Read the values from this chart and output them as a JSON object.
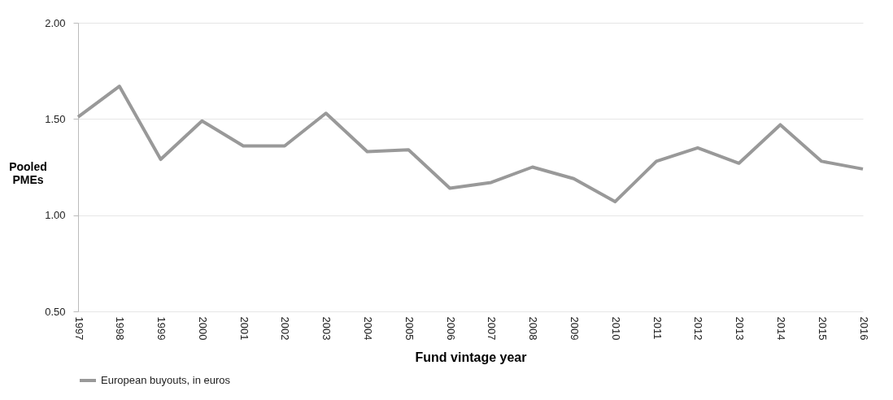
{
  "chart_data": {
    "type": "line",
    "xlabel": "Fund vintage year",
    "ylabel": "Pooled PMEs",
    "categories": [
      "1997",
      "1998",
      "1999",
      "2000",
      "2001",
      "2002",
      "2003",
      "2004",
      "2005",
      "2006",
      "2007",
      "2008",
      "2009",
      "2010",
      "2011",
      "2012",
      "2013",
      "2014",
      "2015",
      "2016"
    ],
    "series": [
      {
        "name": "European buyouts, in euros",
        "color": "#999999",
        "values": [
          1.51,
          1.67,
          1.29,
          1.49,
          1.36,
          1.36,
          1.53,
          1.33,
          1.34,
          1.14,
          1.17,
          1.25,
          1.19,
          1.07,
          1.28,
          1.35,
          1.27,
          1.47,
          1.28,
          1.24
        ]
      }
    ],
    "ylim": [
      0.5,
      2.0
    ],
    "yticks": [
      {
        "value": 0.5,
        "label": "0.50"
      },
      {
        "value": 1.0,
        "label": "1.00"
      },
      {
        "value": 1.5,
        "label": "1.50"
      },
      {
        "value": 2.0,
        "label": "2.00"
      }
    ],
    "grid": "y",
    "legend": "bottom",
    "marker": "none",
    "line_style": "solid"
  }
}
